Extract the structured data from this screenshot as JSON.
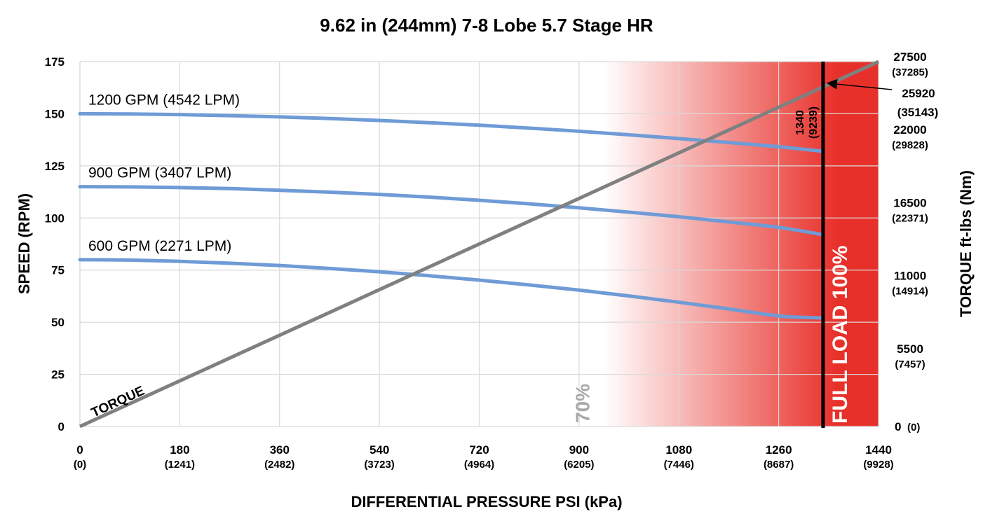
{
  "chart_data": {
    "type": "line",
    "title": "9.62 in (244mm) 7-8 Lobe 5.7 Stage HR",
    "xlabel": "DIFFERENTIAL PRESSURE PSI (kPa)",
    "ylabel": "SPEED (RPM)",
    "y2label": "TORQUE ft-lbs (Nm)",
    "xlim": [
      0,
      1440
    ],
    "ylim": [
      0,
      175
    ],
    "y2lim": [
      0,
      27500
    ],
    "x_ticks": [
      {
        "value": 0,
        "label": "0",
        "sub": "(0)"
      },
      {
        "value": 180,
        "label": "180",
        "sub": "(1241)"
      },
      {
        "value": 360,
        "label": "360",
        "sub": "(2482)"
      },
      {
        "value": 540,
        "label": "540",
        "sub": "(3723)"
      },
      {
        "value": 720,
        "label": "720",
        "sub": "(4964)"
      },
      {
        "value": 900,
        "label": "900",
        "sub": "(6205)"
      },
      {
        "value": 1080,
        "label": "1080",
        "sub": "(7446)"
      },
      {
        "value": 1260,
        "label": "1260",
        "sub": "(8687)"
      },
      {
        "value": 1440,
        "label": "1440",
        "sub": "(9928)"
      }
    ],
    "y_ticks": [
      "0",
      "25",
      "50",
      "75",
      "100",
      "125",
      "150",
      "175"
    ],
    "y2_ticks": [
      {
        "value": 0,
        "label": "0",
        "sub": "(0)",
        "inline": true
      },
      {
        "value": 5500,
        "label": "5500",
        "sub": "(7457)"
      },
      {
        "value": 11000,
        "label": "11000",
        "sub": "(14914)"
      },
      {
        "value": 16500,
        "label": "16500",
        "sub": "(22371)"
      },
      {
        "value": 22000,
        "label": "22000",
        "sub": "(29828)"
      },
      {
        "value": 27500,
        "label": "27500",
        "sub": "(37285)"
      }
    ],
    "grid": true,
    "series": [
      {
        "name": "1200 GPM (4542 LPM)",
        "x": [
          0,
          90,
          180,
          270,
          360,
          450,
          540,
          630,
          720,
          810,
          900,
          990,
          1080,
          1170,
          1260,
          1340
        ],
        "y": [
          150,
          149.9,
          149.6,
          149.1,
          148.5,
          147.7,
          146.8,
          145.7,
          144.5,
          143.1,
          141.6,
          139.9,
          138.1,
          136.2,
          134.2,
          132
        ],
        "color": "#6f9bd6"
      },
      {
        "name": "900 GPM (3407 LPM)",
        "x": [
          0,
          90,
          180,
          270,
          360,
          450,
          540,
          630,
          720,
          810,
          900,
          990,
          1080,
          1170,
          1260,
          1340
        ],
        "y": [
          115,
          114.9,
          114.6,
          114.1,
          113.3,
          112.4,
          111.3,
          110,
          108.5,
          106.8,
          104.9,
          102.8,
          100.6,
          98.1,
          95.5,
          92
        ],
        "color": "#6f9bd6"
      },
      {
        "name": "600 GPM (2271 LPM)",
        "x": [
          0,
          90,
          180,
          270,
          360,
          450,
          540,
          630,
          720,
          810,
          900,
          990,
          1080,
          1170,
          1260,
          1340
        ],
        "y": [
          80,
          79.8,
          79.2,
          78.3,
          77.2,
          75.8,
          74.2,
          72.3,
          70.2,
          67.9,
          65.4,
          62.6,
          59.6,
          56.4,
          53,
          52
        ],
        "color": "#6f9bd6"
      }
    ],
    "torque": {
      "label": "TORQUE",
      "x": [
        0,
        1440
      ],
      "y": [
        0,
        27500
      ],
      "color": "#808080"
    },
    "load_zone": {
      "start_x": 945,
      "end_x": 1440,
      "color": "#e8302a",
      "start_label": "70%",
      "full_load_label": "FULL LOAD 100%"
    },
    "full_load_x": 1340,
    "full_load_x_label": "1340",
    "full_load_x_sub": "(9239)",
    "full_load_torque": 25920,
    "full_load_torque_label": "25920",
    "full_load_torque_sub": "(35143)"
  }
}
